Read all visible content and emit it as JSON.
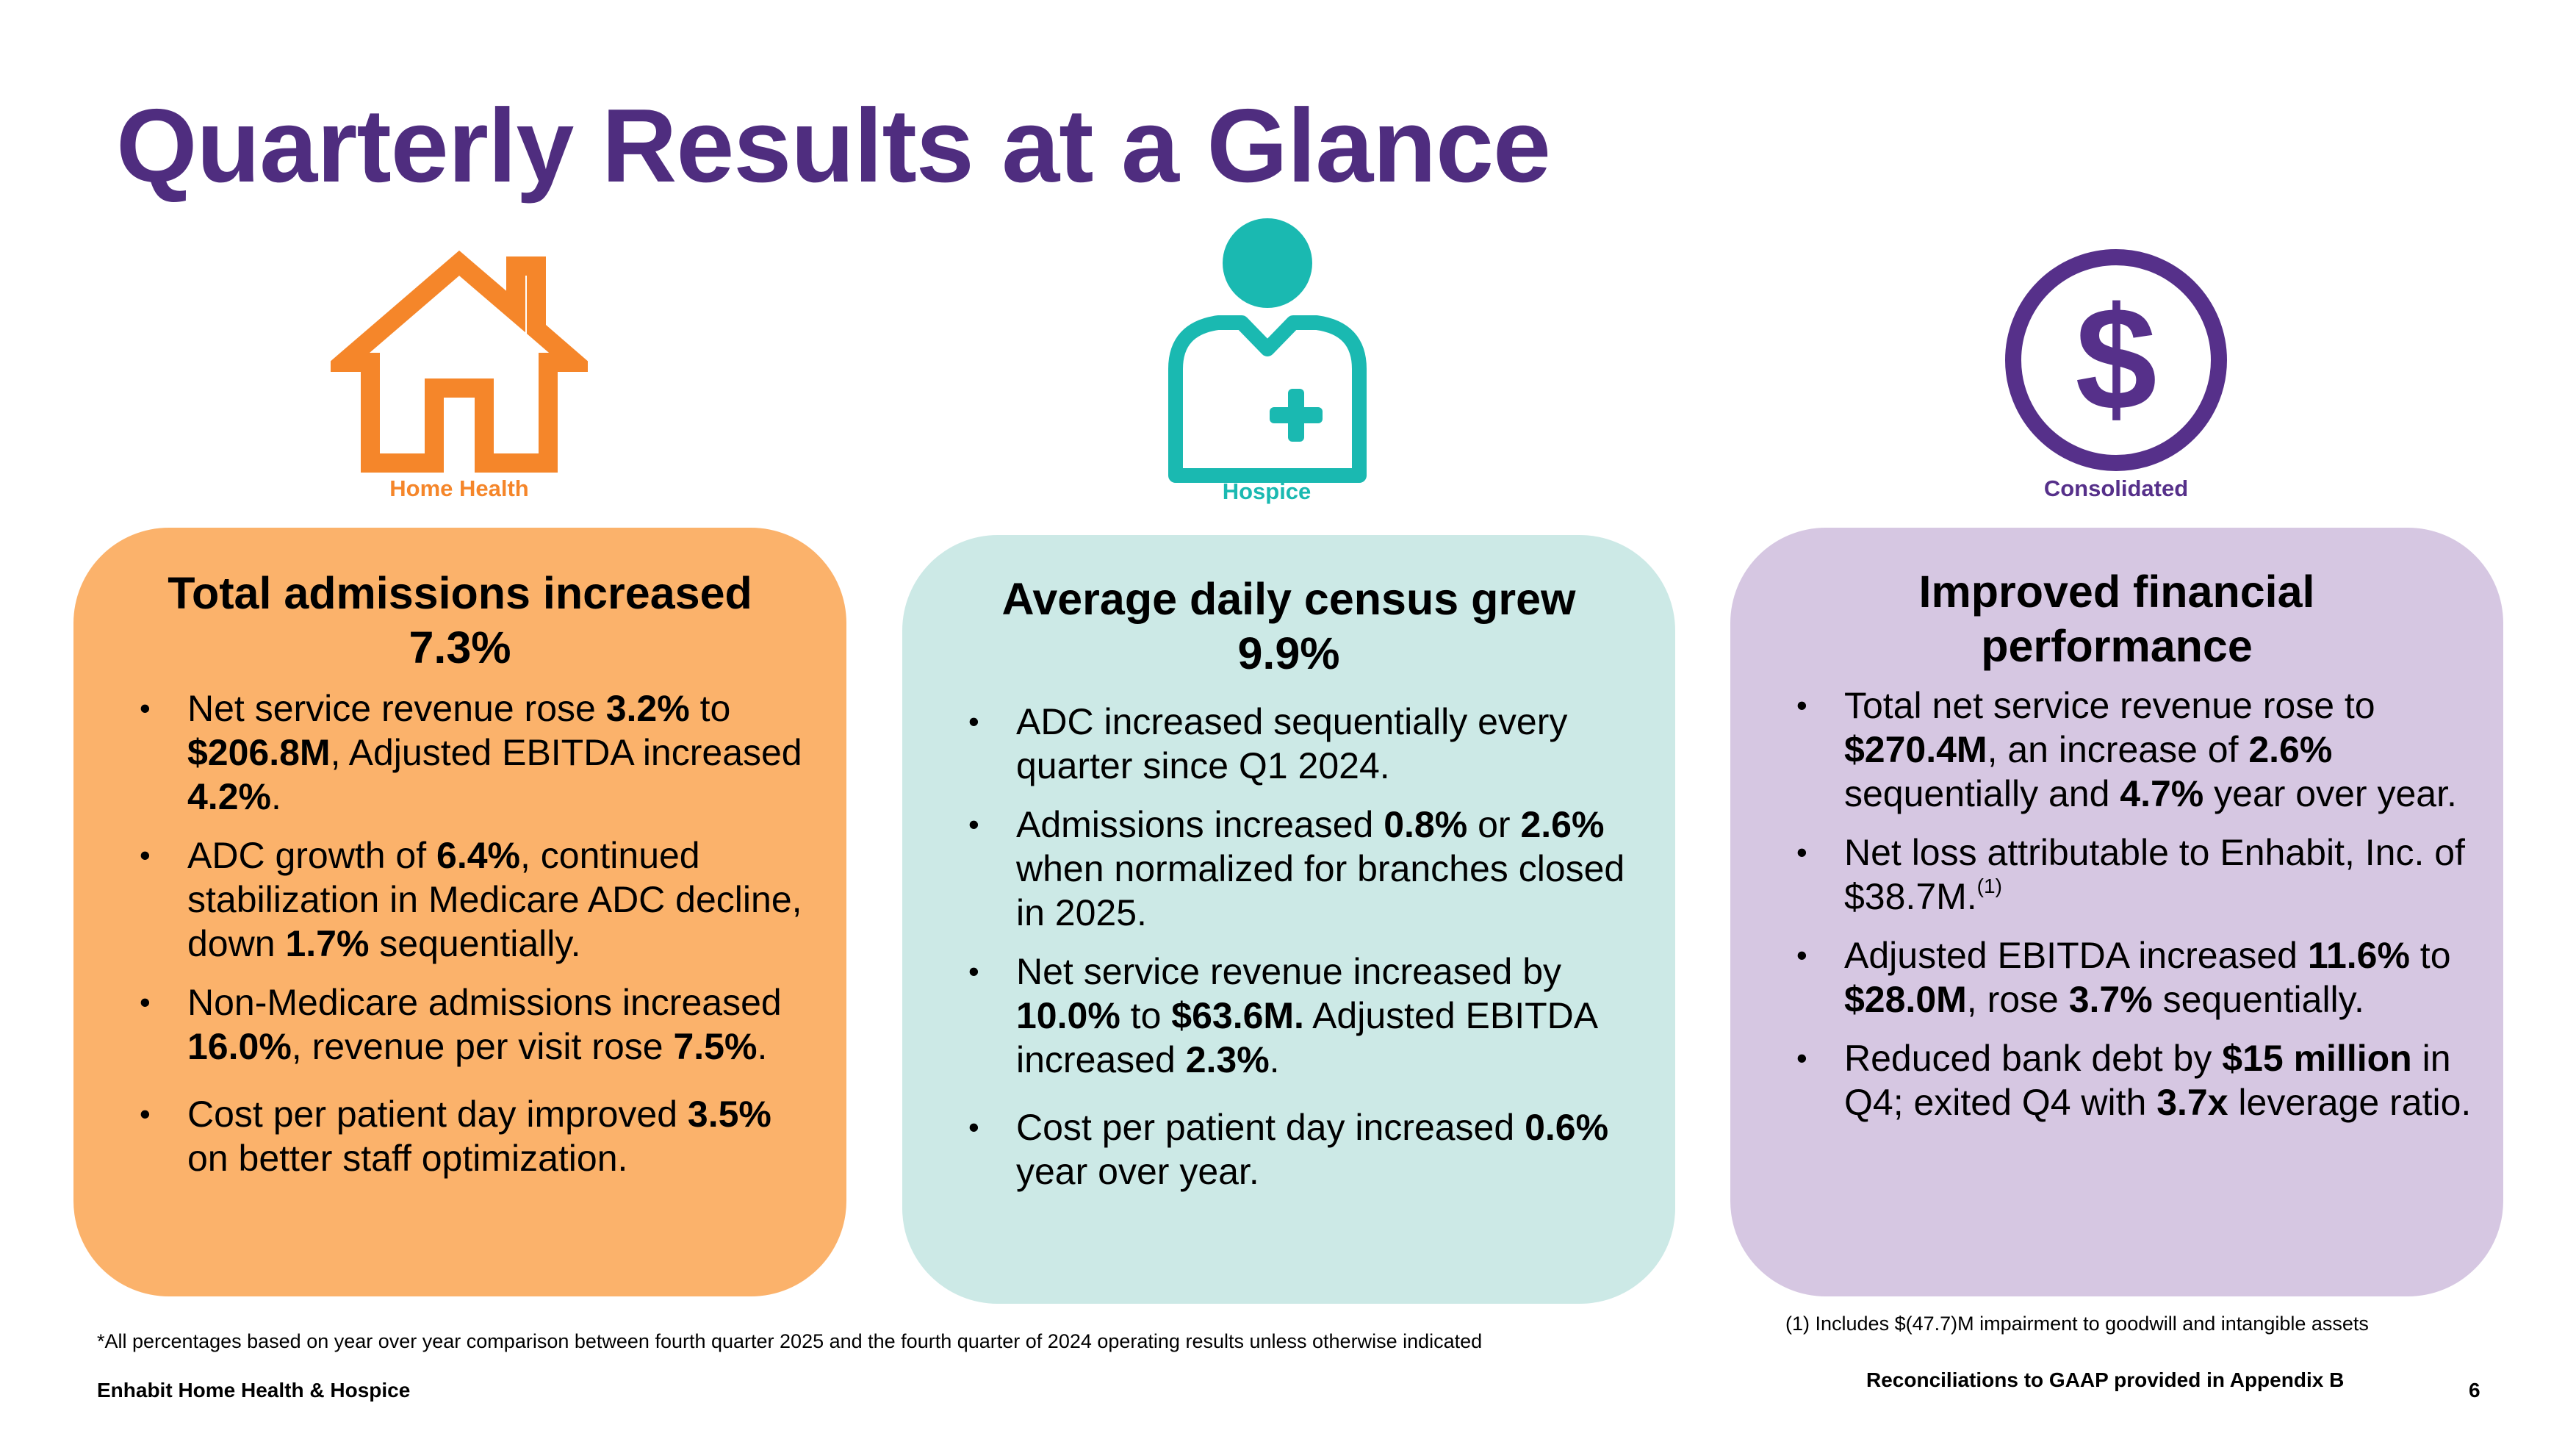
{
  "title": "Quarterly Results at a Glance",
  "colors": {
    "title": "#4f2d7f",
    "home_health": "#f5862a",
    "hospice": "#1ab9b1",
    "consolidated": "#56308a",
    "home_card": "#fbb26b",
    "hospice_card": "#cce9e6",
    "consolidated_card": "#d6c7e2"
  },
  "segments": {
    "home_health": {
      "icon": "house-icon",
      "label": "Home Health",
      "heading_line1": "Total admissions increased",
      "heading_line2": "7.3%",
      "bullets": [
        {
          "parts": [
            "Net service revenue rose ",
            "3.2%",
            " to ",
            "$206.8M",
            ", Adjusted EBITDA increased ",
            "4.2%",
            "."
          ]
        },
        {
          "parts": [
            "ADC growth of ",
            "6.4%",
            ", continued stabilization in Medicare ADC decline, down ",
            "1.7%",
            " sequentially."
          ]
        },
        {
          "parts": [
            "Non-Medicare admissions increased ",
            "16.0%",
            ", revenue per visit rose ",
            "7.5%",
            "."
          ]
        },
        {
          "parts": [
            "Cost per patient day improved ",
            "3.5%",
            " on better staff optimization."
          ]
        }
      ]
    },
    "hospice": {
      "icon": "nurse-icon",
      "label": "Hospice",
      "heading_line1": "Average daily census grew",
      "heading_line2": "9.9%",
      "bullets": [
        {
          "parts": [
            "ADC increased sequentially every quarter since Q1 2024."
          ]
        },
        {
          "parts": [
            "Admissions increased ",
            "0.8%",
            " or ",
            "2.6%",
            " when normalized for branches closed in 2025."
          ]
        },
        {
          "parts": [
            "Net service revenue increased by ",
            "10.0%",
            " to ",
            "$63.6M.",
            " Adjusted EBITDA increased ",
            "2.3%",
            "."
          ]
        },
        {
          "parts": [
            "Cost per patient day increased ",
            "0.6%",
            " year over year."
          ]
        }
      ]
    },
    "consolidated": {
      "icon": "dollar-icon",
      "label": "Consolidated",
      "heading_line1": "Improved financial",
      "heading_line2": "performance",
      "bullets": [
        {
          "parts": [
            "Total net service revenue rose to ",
            "$270.4M",
            ", an increase of ",
            "2.6%",
            " sequentially and ",
            "4.7%",
            " year over year."
          ]
        },
        {
          "parts": [
            "Net loss attributable to Enhabit, Inc. of $38.7M."
          ],
          "sup": "(1)"
        },
        {
          "parts": [
            "Adjusted EBITDA increased ",
            "11.6%",
            " to ",
            "$28.0M",
            ", rose ",
            "3.7%",
            " sequentially."
          ]
        },
        {
          "parts": [
            "Reduced bank debt by ",
            "$15 million",
            " in Q4; exited Q4 with ",
            "3.7x",
            " leverage ratio."
          ]
        }
      ]
    }
  },
  "footnote_impairment": "(1) Includes $(47.7)M impairment to goodwill and intangible assets",
  "footnote_percentages": "*All percentages based on year over year comparison between fourth quarter 2025 and the fourth quarter of 2024 operating results unless otherwise indicated",
  "footer_company": "Enhabit Home Health & Hospice",
  "footer_reconciliation": "Reconciliations to GAAP provided in Appendix B",
  "page_number": "6"
}
